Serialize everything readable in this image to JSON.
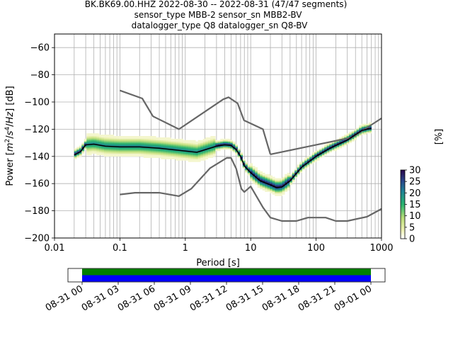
{
  "header": {
    "line1": "BK.BK69.00.HHZ   2022-08-30 -- 2022-08-31  (47/47 segments)",
    "line2": "sensor_type MBB-2 sensor_sn MBB2-BV",
    "line3": "datalogger_type Q8 datalogger_sn Q8-BV"
  },
  "chart_data": [
    {
      "type": "heatmap",
      "title": "BK.BK69.00.HHZ   2022-08-30 -- 2022-08-31  (47/47 segments)",
      "xlabel": "Period [s]",
      "ylabel": "Power [m^2/s^4/Hz] [dB]",
      "x_scale": "log",
      "xlim": [
        0.01,
        1000
      ],
      "ylim": [
        -200,
        -50
      ],
      "x_ticks": [
        0.01,
        0.1,
        1,
        10,
        100,
        1000
      ],
      "x_tick_labels": [
        "0.01",
        "0.1",
        "1",
        "10",
        "100",
        "1000"
      ],
      "y_ticks": [
        -200,
        -180,
        -160,
        -140,
        -120,
        -100,
        -80,
        -60
      ],
      "y_tick_labels": [
        "−200",
        "−180",
        "−160",
        "−140",
        "−120",
        "−100",
        "−80",
        "−60"
      ],
      "grid": true,
      "colorbar": {
        "label": "[%]",
        "range": [
          0,
          30
        ],
        "ticks": [
          "0",
          "5",
          "10",
          "15",
          "20",
          "25",
          "30"
        ],
        "colormap": "pqlx"
      },
      "series": [
        {
          "name": "NHNM",
          "color": "#666666",
          "x": [
            0.1,
            0.22,
            0.32,
            0.8,
            3.8,
            4.6,
            6.3,
            7.9,
            15.4,
            20
          ],
          "y": [
            -91.5,
            -97.4,
            -110.5,
            -120,
            -98,
            -96.5,
            -101,
            -113.5,
            -120,
            -138.5
          ]
        },
        {
          "name": "NHNM-long",
          "color": "#666666",
          "x": [
            20,
            354,
            1000
          ],
          "y": [
            -138.5,
            -126,
            -112
          ]
        },
        {
          "name": "NLNM",
          "color": "#666666",
          "x": [
            0.1,
            0.17,
            0.4,
            0.8,
            1.24,
            2.4,
            4.3,
            5,
            6,
            7.2,
            8,
            10,
            15.4,
            20,
            30,
            50,
            75,
            100,
            140,
            200,
            300,
            600,
            1000
          ],
          "y": [
            -168,
            -166.7,
            -166.7,
            -169.2,
            -163.7,
            -148.6,
            -141.1,
            -141.1,
            -149,
            -163.8,
            -166.2,
            -162.1,
            -177.5,
            -185,
            -187.5,
            -187.5,
            -185,
            -185,
            -185,
            -187.5,
            -187.5,
            -184.4,
            -178.6
          ]
        },
        {
          "name": "mode",
          "color": "#000000",
          "x": [
            0.02,
            0.025,
            0.03,
            0.04,
            0.06,
            0.1,
            0.2,
            0.4,
            0.8,
            1.5,
            3,
            4,
            5,
            6,
            7,
            8,
            10,
            14,
            20,
            25,
            30,
            40,
            60,
            100,
            150,
            200,
            300,
            500,
            600,
            700
          ],
          "y": [
            -139,
            -136.5,
            -131.5,
            -131,
            -132.5,
            -133,
            -133,
            -134,
            -135.5,
            -137,
            -132.5,
            -131.5,
            -132,
            -135,
            -140,
            -147,
            -152,
            -158,
            -161,
            -163,
            -162.5,
            -158,
            -148,
            -140,
            -135,
            -132,
            -128,
            -121,
            -120,
            -119.5
          ]
        }
      ]
    }
  ],
  "timeline": {
    "tick_labels": [
      "08-31 00",
      "08-31 03",
      "08-31 06",
      "08-31 09",
      "08-31 12",
      "08-31 15",
      "08-31 18",
      "08-31 21",
      "09-01 00"
    ],
    "coverage_fraction": 1.0,
    "bar_colors": [
      "#008000",
      "#0000ff"
    ]
  }
}
